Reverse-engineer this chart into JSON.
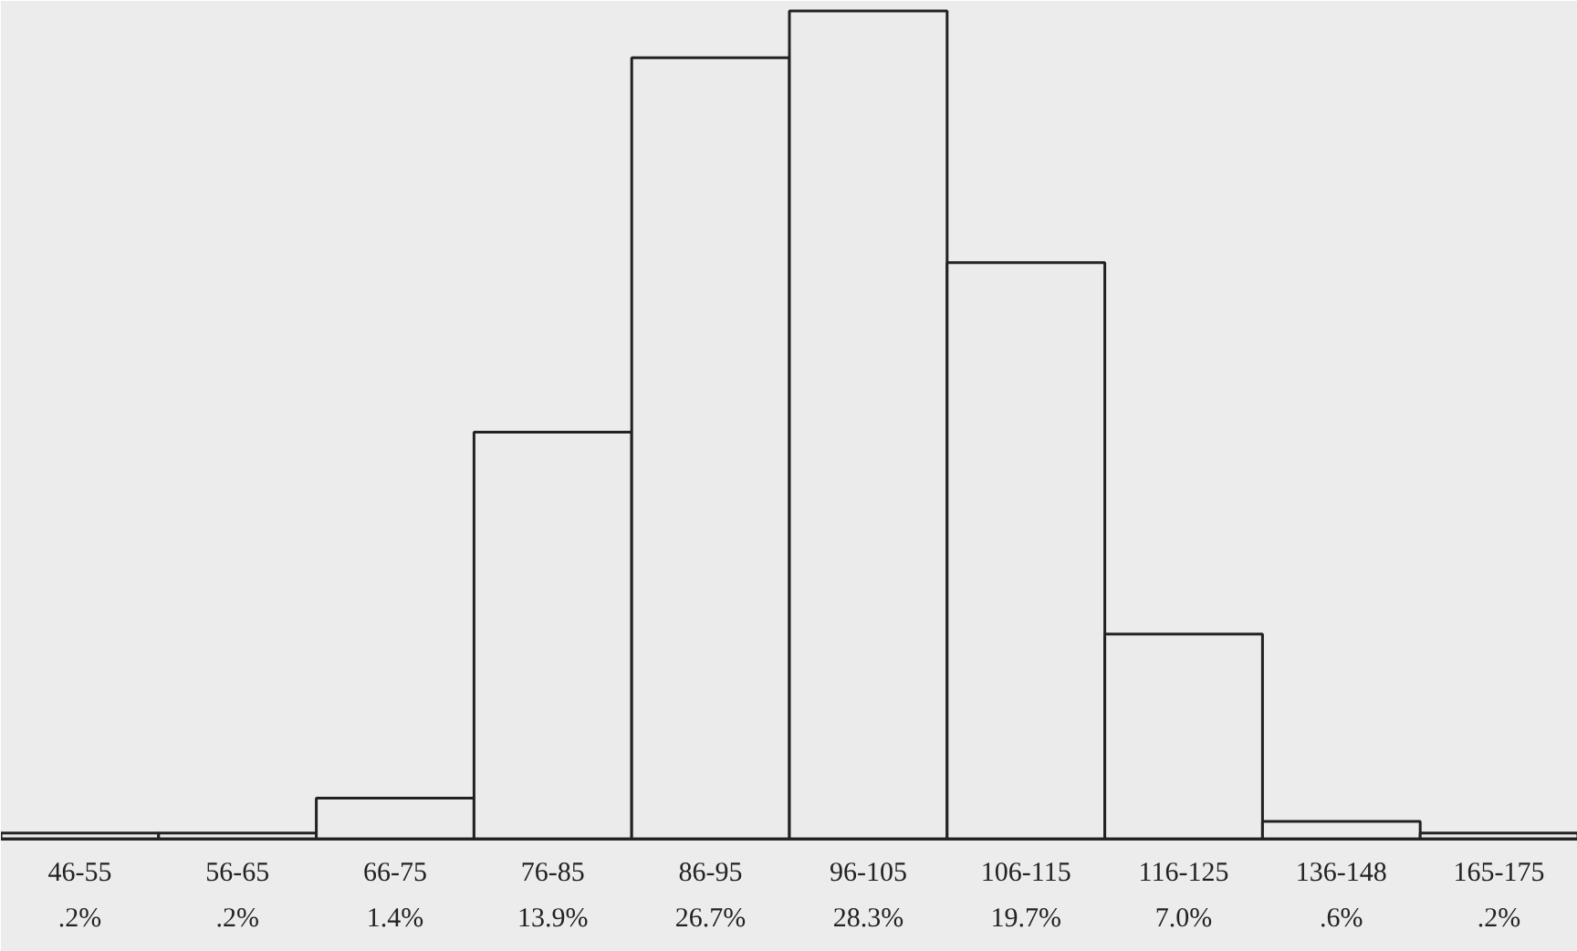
{
  "chart_data": {
    "type": "bar",
    "categories": [
      "46-55",
      "56-65",
      "66-75",
      "76-85",
      "86-95",
      "96-105",
      "106-115",
      "116-125",
      "136-148",
      "165-175"
    ],
    "values": [
      0.2,
      0.2,
      1.4,
      13.9,
      26.7,
      28.3,
      19.7,
      7.0,
      0.6,
      0.2
    ],
    "value_labels": [
      ".2%",
      ".2%",
      "1.4%",
      "13.9%",
      "26.7%",
      "28.3%",
      "19.7%",
      "7.0%",
      ".6%",
      ".2%"
    ],
    "color": "#ebebeb",
    "grid": false
  }
}
